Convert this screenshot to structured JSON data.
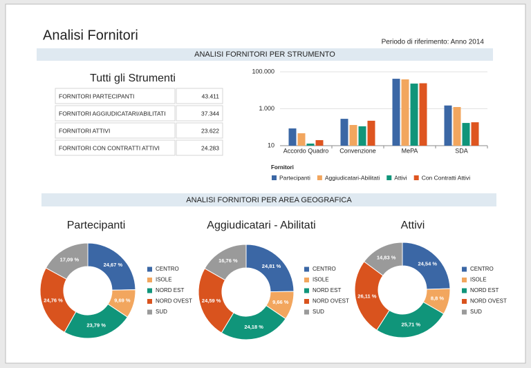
{
  "title": "Analisi Fornitori",
  "period": "Periodo di riferimento: Anno 2014",
  "sections": [
    "ANALISI FORNITORI PER STRUMENTO",
    "ANALISI FORNITORI PER AREA GEOGRAFICA"
  ],
  "table": {
    "title": "Tutti gli Strumenti",
    "rows": [
      [
        "FORNITORI PARTECIPANTI",
        "43.411"
      ],
      [
        "FORNITORI AGGIUDICATARI/ABILITATI",
        "37.344"
      ],
      [
        "FORNITORI ATTIVI",
        "23.622"
      ],
      [
        "FORNITORI CON CONTRATTI ATTIVI",
        "24.283"
      ]
    ]
  },
  "chart_data": [
    {
      "type": "bar",
      "log_scale": true,
      "grid": true,
      "legend_title": "Fornitori",
      "legend": "bottom",
      "categories": [
        "Accordo Quadro",
        "Convenzione",
        "MePA",
        "SDA"
      ],
      "series": [
        {
          "name": "Partecipanti",
          "color": "#3b67a5",
          "values": [
            86,
            285,
            42000,
            1500
          ]
        },
        {
          "name": "Aggiudicatari-Abilitati",
          "color": "#f2a65e",
          "values": [
            47,
            132,
            39000,
            1240
          ]
        },
        {
          "name": "Attivi",
          "color": "#10957a",
          "values": [
            13,
            112,
            23000,
            170
          ]
        },
        {
          "name": "Con Contratti Attivi",
          "color": "#de5520",
          "values": [
            20,
            224,
            24000,
            185
          ]
        }
      ],
      "ylim": [
        10,
        100000
      ],
      "yticks": [
        10,
        {
          "value": 1000,
          "label": "1.000"
        },
        {
          "value": 100000,
          "label": "100.000"
        }
      ]
    },
    {
      "type": "pie",
      "title": "Partecipanti",
      "categories": [
        "CENTRO",
        "ISOLE",
        "NORD EST",
        "NORD OVEST",
        "SUD"
      ],
      "colors": [
        "#3b67a5",
        "#f2a65e",
        "#10957a",
        "#d9531e",
        "#9a9a9a"
      ],
      "values": [
        24.67,
        9.69,
        23.79,
        24.76,
        17.09
      ],
      "value_labels": [
        "24,67 %",
        "9,69 %",
        "23,79 %",
        "24,76 %",
        "17,09 %"
      ]
    },
    {
      "type": "pie",
      "title": "Aggiudicatari - Abilitati",
      "categories": [
        "CENTRO",
        "ISOLE",
        "NORD EST",
        "NORD OVEST",
        "SUD"
      ],
      "colors": [
        "#3b67a5",
        "#f2a65e",
        "#10957a",
        "#d9531e",
        "#9a9a9a"
      ],
      "values": [
        24.81,
        9.66,
        24.18,
        24.59,
        16.76
      ],
      "value_labels": [
        "24,81 %",
        "9,66 %",
        "24,18 %",
        "24,59 %",
        "16,76 %"
      ]
    },
    {
      "type": "pie",
      "title": "Attivi",
      "categories": [
        "CENTRO",
        "ISOLE",
        "NORD EST",
        "NORD OVEST",
        "SUD"
      ],
      "colors": [
        "#3b67a5",
        "#f2a65e",
        "#10957a",
        "#d9531e",
        "#9a9a9a"
      ],
      "values": [
        24.54,
        8.8,
        25.71,
        26.11,
        14.83
      ],
      "value_labels": [
        "24,54 %",
        "8,8 %",
        "25,71 %",
        "26,11 %",
        "14,83 %"
      ]
    }
  ]
}
